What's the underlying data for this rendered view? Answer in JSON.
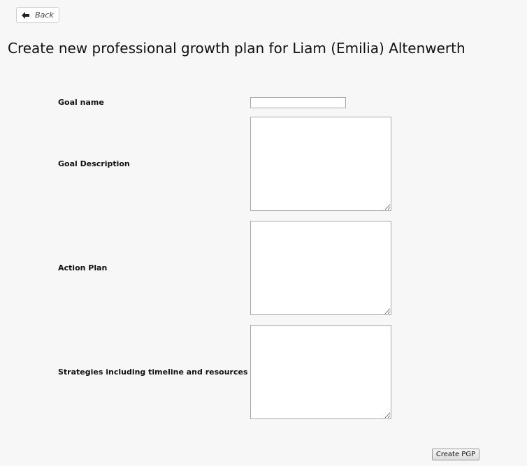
{
  "nav": {
    "back_label": "Back",
    "back_icon": "arrow-left-icon"
  },
  "header": {
    "title": "Create new professional growth plan for Liam (Emilia) Altenwerth"
  },
  "form": {
    "goal_name": {
      "label": "Goal name",
      "value": ""
    },
    "goal_description": {
      "label": "Goal Description",
      "value": ""
    },
    "action_plan": {
      "label": "Action Plan",
      "value": ""
    },
    "strategies": {
      "label": "Strategies including timeline and resources",
      "value": ""
    },
    "submit_label": "Create PGP"
  }
}
